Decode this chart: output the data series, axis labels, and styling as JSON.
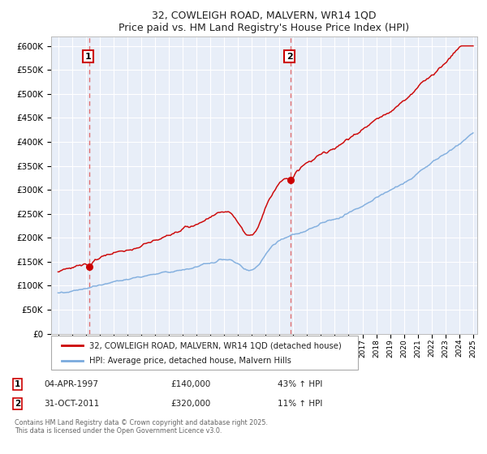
{
  "title_line1": "32, COWLEIGH ROAD, MALVERN, WR14 1QD",
  "title_line2": "Price paid vs. HM Land Registry's House Price Index (HPI)",
  "legend_label_red": "32, COWLEIGH ROAD, MALVERN, WR14 1QD (detached house)",
  "legend_label_blue": "HPI: Average price, detached house, Malvern Hills",
  "annotation1_date": "04-APR-1997",
  "annotation1_price": "£140,000",
  "annotation1_hpi": "43% ↑ HPI",
  "annotation2_date": "31-OCT-2011",
  "annotation2_price": "£320,000",
  "annotation2_hpi": "11% ↑ HPI",
  "copyright_text": "Contains HM Land Registry data © Crown copyright and database right 2025.\nThis data is licensed under the Open Government Licence v3.0.",
  "red_color": "#cc0000",
  "blue_color": "#7aaadd",
  "dashed_line_color": "#dd4444",
  "background_color": "#e8eef8",
  "ylim_min": 0,
  "ylim_max": 620000,
  "year_start": 1995,
  "year_end": 2025,
  "sale1_year": 1997.27,
  "sale1_price": 140000,
  "sale2_year": 2011.83,
  "sale2_price": 320000
}
